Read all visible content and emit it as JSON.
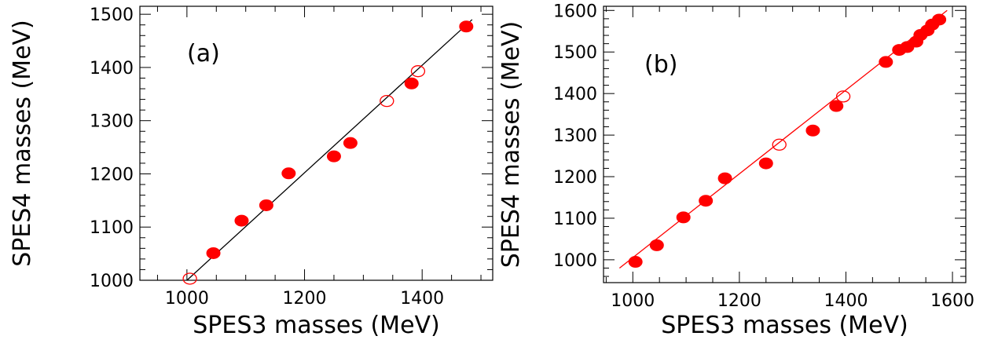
{
  "colors": {
    "marker": "#ff0000",
    "line_a": "#000000",
    "line_b": "#ff0000",
    "axis": "#000000"
  },
  "chart_data": [
    {
      "type": "scatter",
      "panel_label": "(a)",
      "xlabel": "SPES3 masses (MeV)",
      "ylabel": "SPES4 masses (MeV)",
      "xlim": [
        920,
        1520
      ],
      "ylim": [
        1000,
        1515
      ],
      "x_ticks": [
        "1000",
        "1200",
        "1400"
      ],
      "y_ticks": [
        "1000",
        "1100",
        "1200",
        "1300",
        "1400",
        "1500"
      ],
      "grid": false,
      "legend": "none",
      "fit_line": {
        "x": [
          1000,
          1485
        ],
        "y": [
          1000,
          1490
        ],
        "color": "black"
      },
      "filled_points": [
        {
          "x": 1045,
          "y": 1051
        },
        {
          "x": 1093,
          "y": 1112
        },
        {
          "x": 1135,
          "y": 1141
        },
        {
          "x": 1173,
          "y": 1201
        },
        {
          "x": 1250,
          "y": 1233
        },
        {
          "x": 1278,
          "y": 1258
        },
        {
          "x": 1382,
          "y": 1370
        },
        {
          "x": 1475,
          "y": 1477
        }
      ],
      "open_points": [
        {
          "x": 1005,
          "y": 1003
        },
        {
          "x": 1340,
          "y": 1337
        },
        {
          "x": 1393,
          "y": 1393
        }
      ]
    },
    {
      "type": "scatter",
      "panel_label": "(b)",
      "xlabel": "SPES3  masses (MeV)",
      "ylabel": "SPES4 masses (MeV)",
      "xlim": [
        945,
        1625
      ],
      "ylim": [
        945,
        1610
      ],
      "x_ticks": [
        "1000",
        "1200",
        "1400",
        "1600"
      ],
      "y_ticks": [
        "1000",
        "1100",
        "1200",
        "1300",
        "1400",
        "1500",
        "1600"
      ],
      "grid": false,
      "legend": "none",
      "fit_line": {
        "x": [
          975,
          1590
        ],
        "y": [
          980,
          1600
        ],
        "color": "red"
      },
      "filled_points": [
        {
          "x": 1005,
          "y": 995
        },
        {
          "x": 1045,
          "y": 1035
        },
        {
          "x": 1095,
          "y": 1102
        },
        {
          "x": 1137,
          "y": 1142
        },
        {
          "x": 1173,
          "y": 1196
        },
        {
          "x": 1250,
          "y": 1232
        },
        {
          "x": 1338,
          "y": 1311
        },
        {
          "x": 1382,
          "y": 1370
        },
        {
          "x": 1475,
          "y": 1476
        },
        {
          "x": 1500,
          "y": 1505
        },
        {
          "x": 1515,
          "y": 1512
        },
        {
          "x": 1532,
          "y": 1525
        },
        {
          "x": 1540,
          "y": 1541
        },
        {
          "x": 1553,
          "y": 1552
        },
        {
          "x": 1562,
          "y": 1566
        },
        {
          "x": 1575,
          "y": 1578
        }
      ],
      "open_points": [
        {
          "x": 1275,
          "y": 1277
        },
        {
          "x": 1395,
          "y": 1393
        }
      ]
    }
  ]
}
